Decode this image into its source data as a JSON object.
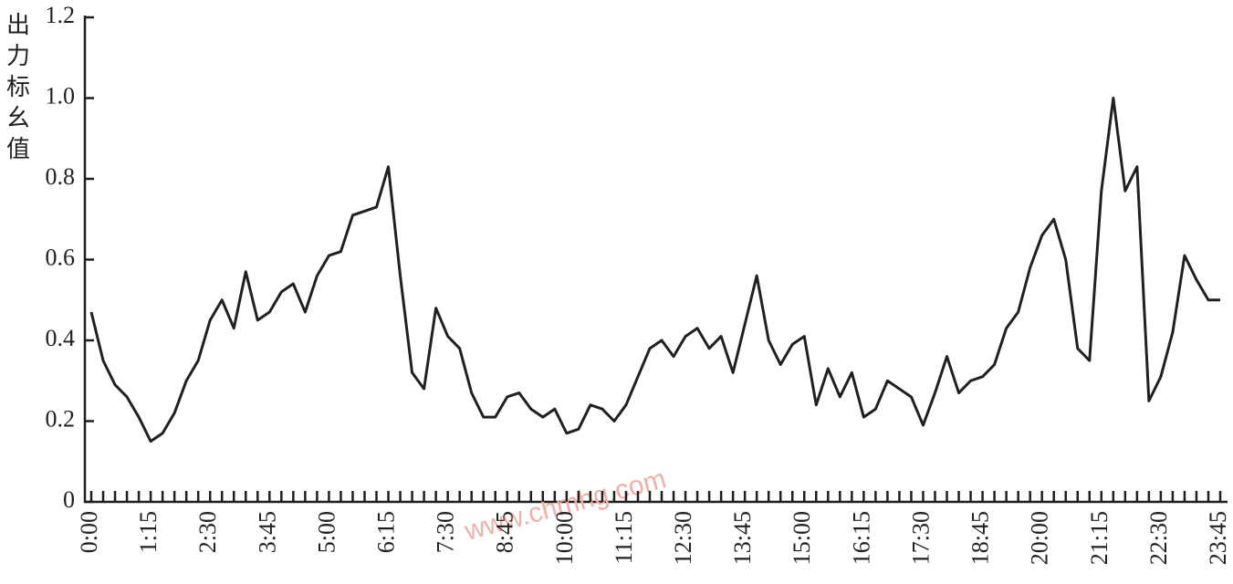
{
  "chart_data": {
    "type": "line",
    "y_label": "出力标幺值",
    "watermark": "www.chmhg.com",
    "categories": [
      "0:00",
      null,
      null,
      null,
      null,
      "1:15",
      null,
      null,
      null,
      null,
      "2:30",
      null,
      null,
      null,
      null,
      "3:45",
      null,
      null,
      null,
      null,
      "5:00",
      null,
      null,
      null,
      null,
      "6:15",
      null,
      null,
      null,
      null,
      "7:30",
      null,
      null,
      null,
      null,
      "8:45",
      null,
      null,
      null,
      null,
      "10:00",
      null,
      null,
      null,
      null,
      "11:15",
      null,
      null,
      null,
      null,
      "12:30",
      null,
      null,
      null,
      null,
      "13:45",
      null,
      null,
      null,
      null,
      "15:00",
      null,
      null,
      null,
      null,
      "16:15",
      null,
      null,
      null,
      null,
      "17:30",
      null,
      null,
      null,
      null,
      "18:45",
      null,
      null,
      null,
      null,
      "20:00",
      null,
      null,
      null,
      null,
      "21:15",
      null,
      null,
      null,
      null,
      "22:30",
      null,
      null,
      null,
      null,
      "23:45"
    ],
    "values": [
      0.47,
      0.35,
      0.29,
      0.26,
      0.21,
      0.15,
      0.17,
      0.22,
      0.3,
      0.35,
      0.45,
      0.5,
      0.43,
      0.57,
      0.45,
      0.47,
      0.52,
      0.54,
      0.47,
      0.56,
      0.61,
      0.62,
      0.71,
      0.72,
      0.73,
      0.83,
      0.56,
      0.32,
      0.28,
      0.48,
      0.41,
      0.38,
      0.27,
      0.21,
      0.21,
      0.26,
      0.27,
      0.23,
      0.21,
      0.23,
      0.17,
      0.18,
      0.24,
      0.23,
      0.2,
      0.24,
      0.31,
      0.38,
      0.4,
      0.36,
      0.41,
      0.43,
      0.38,
      0.41,
      0.32,
      0.44,
      0.56,
      0.4,
      0.34,
      0.39,
      0.41,
      0.24,
      0.33,
      0.26,
      0.32,
      0.21,
      0.23,
      0.3,
      0.28,
      0.26,
      0.19,
      0.27,
      0.36,
      0.27,
      0.3,
      0.31,
      0.34,
      0.43,
      0.47,
      0.58,
      0.66,
      0.7,
      0.6,
      0.38,
      0.35,
      0.77,
      1.0,
      0.77,
      0.83,
      0.25,
      0.31,
      0.42,
      0.61,
      0.55,
      0.5,
      0.5
    ],
    "color": "#231f20",
    "ylim": [
      0,
      1.2
    ],
    "yticks": [
      0,
      0.2,
      0.4,
      0.6,
      0.8,
      {
        "value": 1,
        "label": "1.0"
      },
      1.2
    ]
  }
}
